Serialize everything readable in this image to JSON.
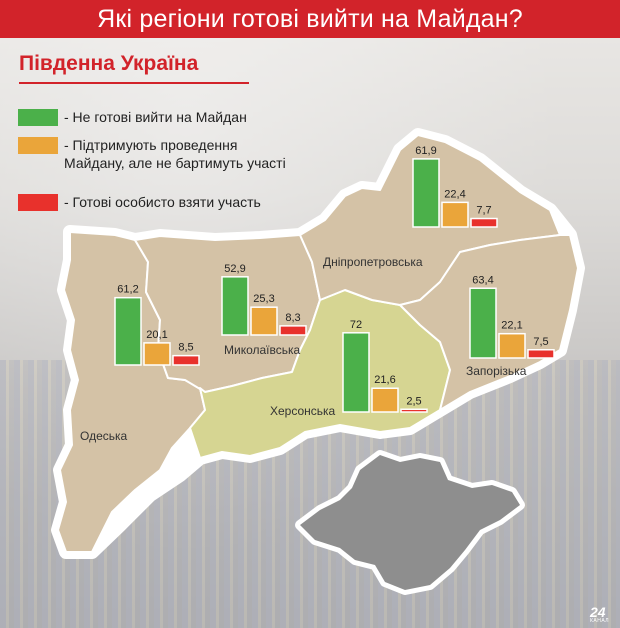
{
  "header": {
    "title": "Які регіони готові вийти на Майдан?"
  },
  "subtitle": "Південна Україна",
  "legend": [
    {
      "label": "- Не готові вийти на Майдан",
      "color": "#4bb04a"
    },
    {
      "label": "- Підтримують проведення Майдану, але не бартимуть участі",
      "color": "#eaa53a"
    },
    {
      "label": "- Готові особисто взяти участь",
      "color": "#e8312c"
    }
  ],
  "colors": {
    "accent": "#d2232a",
    "map_fill": "#d4c2a6",
    "map_highlight": "#d6d592",
    "map_stroke": "#ffffff",
    "crimea": "#8e8e8e"
  },
  "chart_data": {
    "type": "bar",
    "title": "Які регіони готові вийти на Майдан?",
    "subtitle": "Південна Україна",
    "categories": [
      "Одеська",
      "Миколаївська",
      "Херсонська",
      "Дніпропетровська",
      "Запорізька"
    ],
    "series": [
      {
        "name": "Не готові вийти на Майдан",
        "values": [
          61.2,
          52.9,
          72,
          61.9,
          63.4
        ],
        "labels": [
          "61,2",
          "52,9",
          "72",
          "61,9",
          "63,4"
        ]
      },
      {
        "name": "Підтримують проведення Майдану, але не бартимуть участі",
        "values": [
          20.1,
          25.3,
          21.6,
          22.4,
          22.1
        ],
        "labels": [
          "20,1",
          "25,3",
          "21,6",
          "22,4",
          "22,1"
        ]
      },
      {
        "name": "Готові особисто взяти участь",
        "values": [
          8.5,
          8.3,
          2.5,
          7.7,
          7.5
        ],
        "labels": [
          "8,5",
          "8,3",
          "2,5",
          "7,7",
          "7,5"
        ]
      }
    ],
    "ylim": [
      0,
      72
    ]
  },
  "logo": {
    "number": "24",
    "sub": "КАНАЛ"
  }
}
